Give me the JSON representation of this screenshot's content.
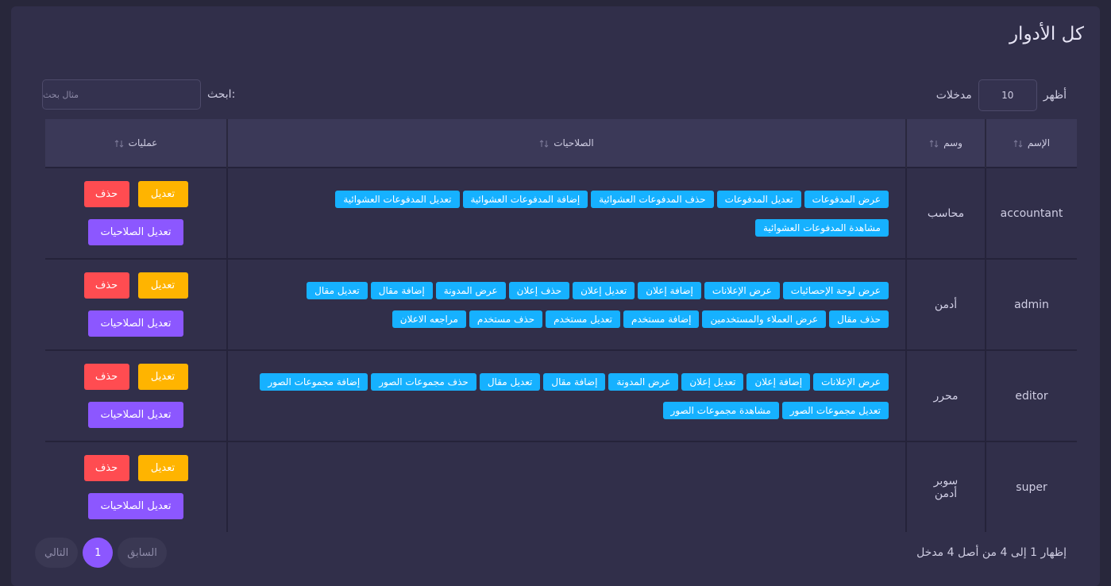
{
  "header": {
    "title": "كل الأدوار"
  },
  "controls": {
    "show_label": "أظهر",
    "page_size": 10,
    "entries_label": "مدخلات",
    "search_label": "ابحث:",
    "search_placeholder": "مثال بحث"
  },
  "table": {
    "columns": [
      "الإسم",
      "وسم",
      "الصلاحيات",
      "عمليات"
    ],
    "rows": [
      {
        "name": "accountant",
        "label": "محاسب",
        "permissions": [
          "عرض المدفوعات",
          "تعديل المدفوعات",
          "حذف المدفوعات العشوائية",
          "إضافة المدفوعات العشوائية",
          "تعديل المدفوعات العشوائية",
          "مشاهدة المدفوعات العشوائية"
        ]
      },
      {
        "name": "admin",
        "label": "أدمن",
        "permissions": [
          "عرض لوحة الإحصائيات",
          "عرض الإعلانات",
          "إضافة إعلان",
          "تعديل إعلان",
          "حذف إعلان",
          "عرض المدونة",
          "إضافة مقال",
          "تعديل مقال",
          "حذف مقال",
          "عرض العملاء والمستخدمين",
          "إضافة مستخدم",
          "تعديل مستخدم",
          "حذف مستخدم",
          "مراجعه الاعلان"
        ]
      },
      {
        "name": "editor",
        "label": "محرر",
        "permissions": [
          "عرض الإعلانات",
          "إضافة إعلان",
          "تعديل إعلان",
          "عرض المدونة",
          "إضافة مقال",
          "تعديل مقال",
          "حذف مجموعات الصور",
          "إضافة مجموعات الصور",
          "تعديل مجموعات الصور",
          "مشاهدة مجموعات الصور"
        ]
      },
      {
        "name": "super",
        "label": "سوبر أدمن",
        "permissions": []
      }
    ]
  },
  "actions": {
    "edit": "تعديل",
    "delete": "حذف",
    "edit_permissions": "تعديل الصلاحيات"
  },
  "footer": {
    "info": "إظهار 1 إلى 4 من أصل 4 مدخل",
    "previous": "السابق",
    "page": 1,
    "next": "التالي"
  }
}
